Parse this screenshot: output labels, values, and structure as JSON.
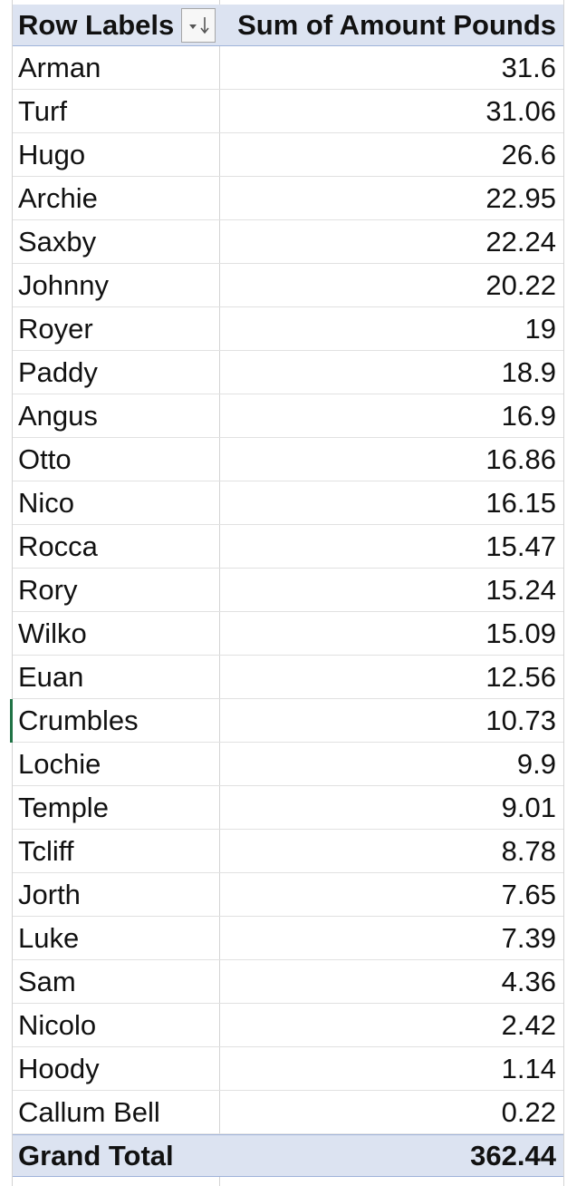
{
  "pivot": {
    "header": {
      "row_label": "Row Labels",
      "value_label": "Sum of Amount Pounds",
      "filter_icon": "sort-filter-icon"
    },
    "rows": [
      {
        "name": "Arman",
        "value": "31.6"
      },
      {
        "name": "Turf",
        "value": "31.06"
      },
      {
        "name": "Hugo",
        "value": "26.6"
      },
      {
        "name": "Archie",
        "value": "22.95"
      },
      {
        "name": "Saxby",
        "value": "22.24"
      },
      {
        "name": "Johnny",
        "value": "20.22"
      },
      {
        "name": "Royer",
        "value": "19"
      },
      {
        "name": "Paddy",
        "value": "18.9"
      },
      {
        "name": "Angus",
        "value": "16.9"
      },
      {
        "name": "Otto",
        "value": "16.86"
      },
      {
        "name": "Nico",
        "value": "16.15"
      },
      {
        "name": "Rocca",
        "value": "15.47"
      },
      {
        "name": "Rory",
        "value": "15.24"
      },
      {
        "name": "Wilko",
        "value": "15.09"
      },
      {
        "name": "Euan",
        "value": "12.56"
      },
      {
        "name": "Crumbles",
        "value": "10.73"
      },
      {
        "name": "Lochie",
        "value": "9.9"
      },
      {
        "name": "Temple",
        "value": "9.01"
      },
      {
        "name": "Tcliff",
        "value": "8.78"
      },
      {
        "name": "Jorth",
        "value": "7.65"
      },
      {
        "name": "Luke",
        "value": "7.39"
      },
      {
        "name": "Sam",
        "value": "4.36"
      },
      {
        "name": "Nicolo",
        "value": "2.42"
      },
      {
        "name": "Hoody",
        "value": "1.14"
      },
      {
        "name": "Callum Bell",
        "value": "0.22"
      }
    ],
    "total": {
      "label": "Grand Total",
      "value": "362.44"
    }
  },
  "colors": {
    "header_bg": "#dce3f1",
    "header_border": "#9fb3da",
    "gridline": "#d4d4d4",
    "selection_accent": "#217346"
  }
}
